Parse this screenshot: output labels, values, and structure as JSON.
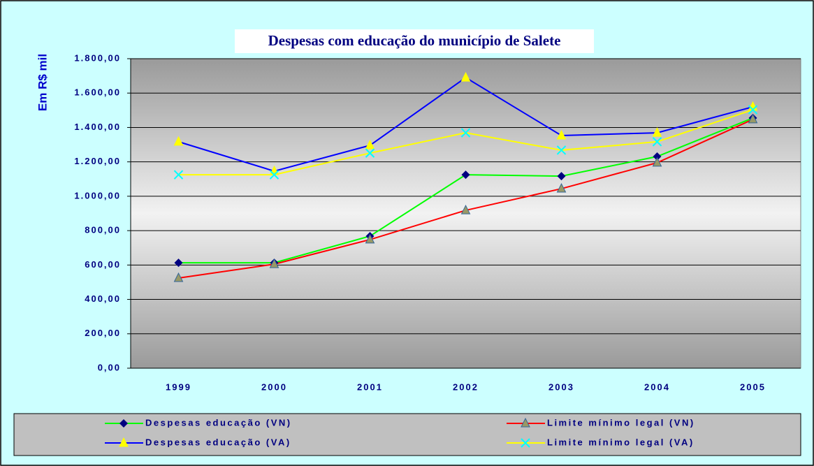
{
  "chart_data": {
    "type": "line",
    "title": "Despesas com educação do município de Salete",
    "y_label": "Em R$ mil",
    "categories": [
      "1999",
      "2000",
      "2001",
      "2002",
      "2003",
      "2004",
      "2005"
    ],
    "series": [
      {
        "name": "Despesas educação (VN)",
        "color": "#00ff00",
        "marker": "diamond",
        "marker_color": "#000080",
        "values": [
          613,
          613,
          768,
          1125,
          1117,
          1231,
          1455
        ]
      },
      {
        "name": "Limite mínimo legal (VN)",
        "color": "#ff0000",
        "marker": "triangle",
        "marker_color": "#999966",
        "values": [
          524,
          605,
          748,
          918,
          1044,
          1195,
          1447
        ]
      },
      {
        "name": "Despesas educação (VA)",
        "color": "#0000ff",
        "marker": "triangle",
        "marker_color": "#ffff00",
        "values": [
          1317,
          1146,
          1296,
          1690,
          1353,
          1369,
          1520
        ]
      },
      {
        "name": "Limite mínimo legal (VA)",
        "color": "#ffff00",
        "marker": "x",
        "marker_color": "#00ffff",
        "values": [
          1125,
          1125,
          1251,
          1369,
          1268,
          1317,
          1503
        ]
      }
    ],
    "ylim": [
      0,
      1800
    ],
    "yticks": [
      {
        "value": 0,
        "label": "0,00"
      },
      {
        "value": 200,
        "label": "200,00"
      },
      {
        "value": 400,
        "label": "400,00"
      },
      {
        "value": 600,
        "label": "600,00"
      },
      {
        "value": 800,
        "label": "800,00"
      },
      {
        "value": 1000,
        "label": "1.000,00"
      },
      {
        "value": 1200,
        "label": "1.200,00"
      },
      {
        "value": 1400,
        "label": "1.400,00"
      },
      {
        "value": 1600,
        "label": "1.600,00"
      },
      {
        "value": 1800,
        "label": "1.800,00"
      }
    ],
    "grid": true
  }
}
